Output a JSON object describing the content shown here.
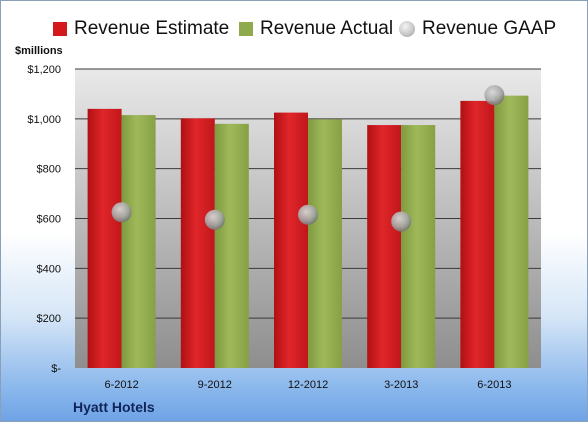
{
  "legend": {
    "estimate": "Revenue Estimate",
    "actual": "Revenue Actual",
    "gaap": "Revenue GAAP"
  },
  "units_label": "$millions",
  "company": "Hyatt Hotels",
  "colors": {
    "estimate": "#d4191d",
    "actual": "#8faa4c",
    "gaap": "#b5b5b5",
    "plot_top": "#e9e9e9",
    "plot_bottom": "#8e8e8e"
  },
  "chart_data": {
    "type": "bar",
    "categories": [
      "6-2012",
      "9-2012",
      "12-2012",
      "3-2013",
      "6-2013"
    ],
    "series": [
      {
        "name": "Revenue Estimate",
        "values": [
          1040,
          1002,
          1025,
          975,
          1072
        ]
      },
      {
        "name": "Revenue Actual",
        "values": [
          1015,
          980,
          998,
          975,
          1093
        ]
      },
      {
        "name": "Revenue GAAP",
        "type": "scatter",
        "values": [
          625,
          595,
          615,
          588,
          1095
        ]
      }
    ],
    "ylabel": "$millions",
    "ylim": [
      0,
      1200
    ],
    "yticks": [
      0,
      200,
      400,
      600,
      800,
      1000,
      1200
    ],
    "ytick_labels": [
      "$-",
      "$200",
      "$400",
      "$600",
      "$800",
      "$1,000",
      "$1,200"
    ],
    "grid": true,
    "legend_position": "top"
  }
}
